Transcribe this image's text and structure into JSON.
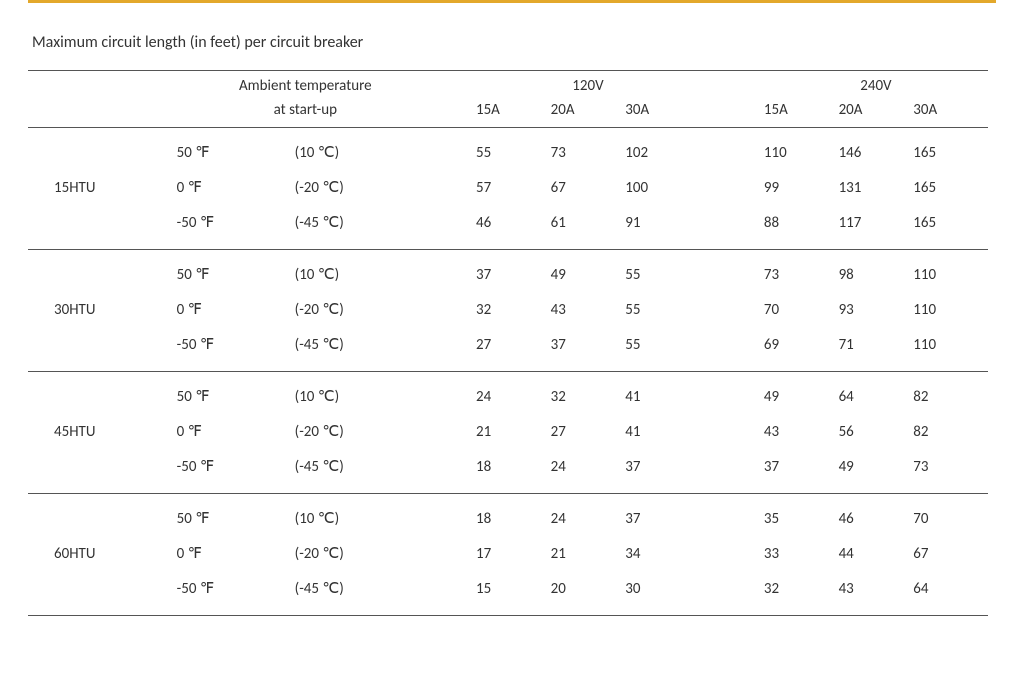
{
  "accent_color": "#e3a82b",
  "rule_color": "#555555",
  "text_color": "#333333",
  "background_color": "#ffffff",
  "font_family": "Calibri",
  "title": "Maximum  circuit length (in feet) per circuit breaker",
  "header": {
    "ambient_line1": "Ambient temperature",
    "ambient_line2": "at start-up",
    "volt_groups": [
      "120V",
      "240V"
    ],
    "amp_labels": [
      "15A",
      "20A",
      "30A"
    ]
  },
  "temp_rows": [
    {
      "f": "50 ℉",
      "c": "(10 ℃)"
    },
    {
      "f": "0 ℉",
      "c": "(-20 ℃)"
    },
    {
      "f": "-50 ℉",
      "c": "(-45 ℃)"
    }
  ],
  "sections": [
    {
      "model": "15HTU",
      "values": [
        [
          55,
          73,
          102,
          110,
          146,
          165
        ],
        [
          57,
          67,
          100,
          99,
          131,
          165
        ],
        [
          46,
          61,
          91,
          88,
          117,
          165
        ]
      ]
    },
    {
      "model": "30HTU",
      "values": [
        [
          37,
          49,
          55,
          73,
          98,
          110
        ],
        [
          32,
          43,
          55,
          70,
          93,
          110
        ],
        [
          27,
          37,
          55,
          69,
          71,
          110
        ]
      ]
    },
    {
      "model": "45HTU",
      "values": [
        [
          24,
          32,
          41,
          49,
          64,
          82
        ],
        [
          21,
          27,
          41,
          43,
          56,
          82
        ],
        [
          18,
          24,
          37,
          37,
          49,
          73
        ]
      ]
    },
    {
      "model": "60HTU",
      "values": [
        [
          18,
          24,
          37,
          35,
          46,
          70
        ],
        [
          17,
          21,
          34,
          33,
          44,
          67
        ],
        [
          15,
          20,
          30,
          32,
          43,
          64
        ]
      ]
    }
  ]
}
